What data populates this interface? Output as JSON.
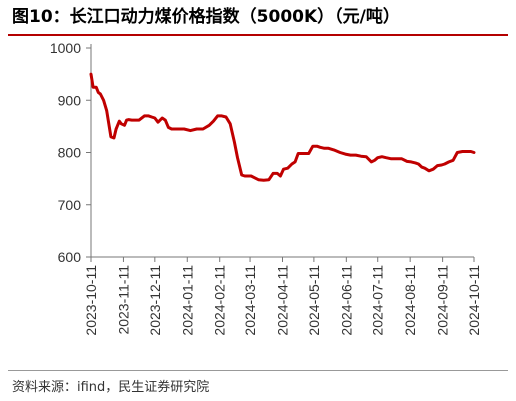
{
  "header": {
    "title": "图10：长江口动力煤价格指数（5000K）（元/吨）"
  },
  "footer": {
    "source": "资料来源：ifind，民生证券研究院"
  },
  "chart_data": {
    "type": "line",
    "title": "图10：长江口动力煤价格指数（5000K）（元/吨）",
    "xlabel": "",
    "ylabel": "",
    "ylim": [
      600,
      1000
    ],
    "yticks": [
      600,
      700,
      800,
      900,
      1000
    ],
    "xlim": [
      "2023-10-11",
      "2024-10-11"
    ],
    "xticks": [
      "2023-10-11",
      "2023-11-11",
      "2023-12-11",
      "2024-01-11",
      "2024-02-11",
      "2024-03-11",
      "2024-04-11",
      "2024-05-11",
      "2024-06-11",
      "2024-07-11",
      "2024-08-11",
      "2024-09-11",
      "2024-10-11"
    ],
    "grid": false,
    "series_color": "#c00000",
    "series": [
      {
        "x": [
          "2023-10-11",
          "2023-10-13",
          "2023-10-16",
          "2023-10-18",
          "2023-10-20",
          "2023-10-23",
          "2023-10-26",
          "2023-10-30",
          "2023-11-02",
          "2023-11-04",
          "2023-11-07",
          "2023-11-09",
          "2023-11-12",
          "2023-11-14",
          "2023-11-16",
          "2023-11-19",
          "2023-11-22",
          "2023-11-26",
          "2023-12-01",
          "2023-12-05",
          "2023-12-08",
          "2023-12-11",
          "2023-12-14",
          "2023-12-18",
          "2023-12-21",
          "2023-12-24",
          "2023-12-27",
          "2023-12-30",
          "2024-01-03",
          "2024-01-08",
          "2024-01-14",
          "2024-01-20",
          "2024-01-26",
          "2024-02-01",
          "2024-02-05",
          "2024-02-09",
          "2024-02-13",
          "2024-02-17",
          "2024-02-21",
          "2024-02-25",
          "2024-02-28",
          "2024-03-03",
          "2024-03-06",
          "2024-03-09",
          "2024-03-12",
          "2024-03-15",
          "2024-03-19",
          "2024-03-24",
          "2024-03-29",
          "2024-04-02",
          "2024-04-06",
          "2024-04-09",
          "2024-04-12",
          "2024-04-16",
          "2024-04-20",
          "2024-04-23",
          "2024-04-26",
          "2024-04-29",
          "2024-05-02",
          "2024-05-06",
          "2024-05-10",
          "2024-05-14",
          "2024-05-17",
          "2024-05-21",
          "2024-05-25",
          "2024-05-30",
          "2024-06-05",
          "2024-06-10",
          "2024-06-15",
          "2024-06-20",
          "2024-06-25",
          "2024-06-30",
          "2024-07-05",
          "2024-07-08",
          "2024-07-11",
          "2024-07-15",
          "2024-07-19",
          "2024-07-24",
          "2024-07-29",
          "2024-08-03",
          "2024-08-08",
          "2024-08-12",
          "2024-08-16",
          "2024-08-19",
          "2024-08-22",
          "2024-08-25",
          "2024-08-29",
          "2024-09-02",
          "2024-09-06",
          "2024-09-10",
          "2024-09-13",
          "2024-09-17",
          "2024-09-21",
          "2024-09-25",
          "2024-09-30",
          "2024-10-05",
          "2024-10-08",
          "2024-10-11"
        ],
        "values": [
          950,
          925,
          925,
          915,
          912,
          900,
          880,
          830,
          828,
          845,
          860,
          855,
          852,
          862,
          863,
          862,
          862,
          862,
          870,
          870,
          868,
          866,
          858,
          866,
          862,
          848,
          845,
          845,
          845,
          845,
          842,
          845,
          845,
          852,
          860,
          870,
          870,
          868,
          855,
          820,
          790,
          757,
          755,
          755,
          755,
          752,
          748,
          747,
          748,
          760,
          760,
          755,
          768,
          770,
          778,
          782,
          798,
          798,
          798,
          798,
          812,
          812,
          810,
          808,
          808,
          805,
          800,
          797,
          795,
          795,
          793,
          792,
          782,
          785,
          790,
          792,
          790,
          788,
          788,
          788,
          783,
          782,
          780,
          778,
          772,
          770,
          765,
          768,
          775,
          776,
          778,
          782,
          785,
          800,
          802,
          802,
          802,
          800
        ]
      }
    ]
  }
}
